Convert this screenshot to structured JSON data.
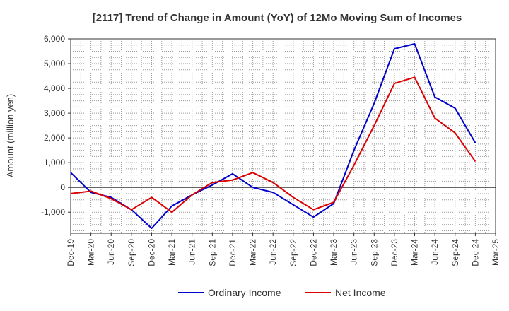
{
  "chart_data": {
    "type": "line",
    "title": "[2117]  Trend of Change in Amount (YoY) of 12Mo Moving Sum of Incomes",
    "xlabel": "",
    "ylabel": "Amount (million yen)",
    "ylim": [
      -1850,
      6000
    ],
    "yticks": [
      6000,
      5000,
      4000,
      3000,
      2000,
      1000,
      0,
      -1000
    ],
    "ytick_labels": [
      "6,000",
      "5,000",
      "4,000",
      "3,000",
      "2,000",
      "1,000",
      "0",
      "-1,000"
    ],
    "x": [
      "Dec-19",
      "Mar-20",
      "Jun-20",
      "Sep-20",
      "Dec-20",
      "Mar-21",
      "Jun-21",
      "Sep-21",
      "Dec-21",
      "Mar-22",
      "Jun-22",
      "Sep-22",
      "Dec-22",
      "Mar-23",
      "Jun-23",
      "Sep-23",
      "Dec-23",
      "Mar-24",
      "Jun-24",
      "Sep-24",
      "Dec-24",
      "Mar-25"
    ],
    "grid": true,
    "legend_position": "bottom",
    "series": [
      {
        "name": "Ordinary Income",
        "color": "#0000cc",
        "values": [
          600,
          -200,
          -400,
          -900,
          -1650,
          -750,
          -300,
          100,
          550,
          0,
          -200,
          -700,
          -1200,
          -650,
          1500,
          3400,
          5600,
          5800,
          3650,
          3200,
          1800,
          null
        ]
      },
      {
        "name": "Net Income",
        "color": "#dd0000",
        "values": [
          -250,
          -150,
          -450,
          -900,
          -400,
          -1000,
          -300,
          200,
          300,
          600,
          200,
          -400,
          -900,
          -600,
          900,
          2500,
          4200,
          4450,
          2800,
          2200,
          1050,
          null
        ]
      }
    ]
  }
}
